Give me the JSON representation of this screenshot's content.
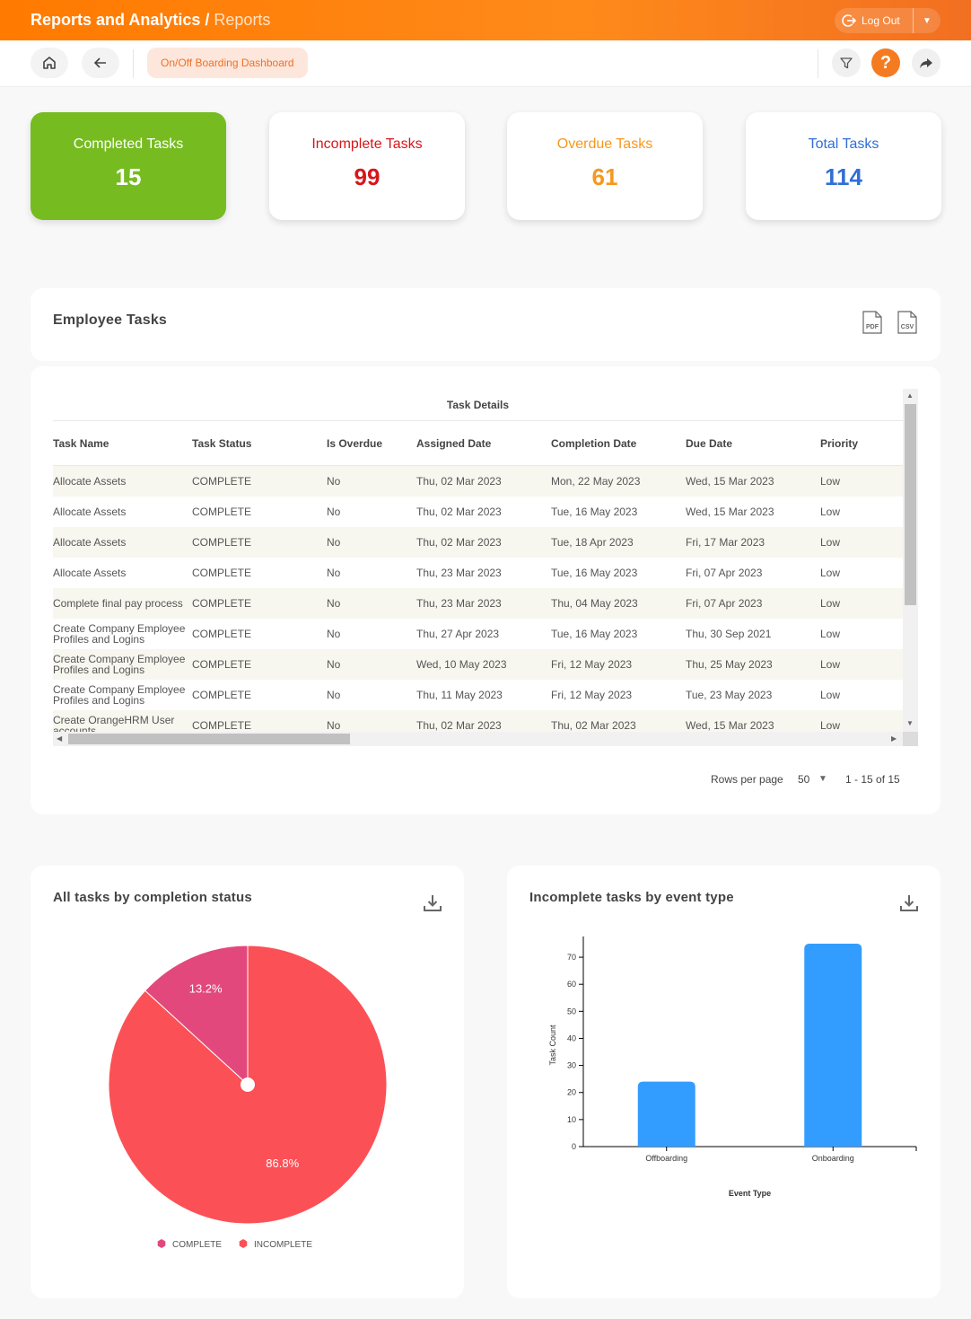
{
  "header": {
    "title": "Reports and Analytics",
    "separator": "/",
    "subtitle": "Reports",
    "logout_label": "Log Out"
  },
  "nav": {
    "dashboard_label": "On/Off Boarding Dashboard",
    "help_glyph": "?"
  },
  "stats": {
    "completed": {
      "label": "Completed Tasks",
      "value": "15",
      "color": "#76bc21"
    },
    "incomplete": {
      "label": "Incomplete Tasks",
      "value": "99",
      "color": "#d7161a"
    },
    "overdue": {
      "label": "Overdue Tasks",
      "value": "61",
      "color": "#f7971e"
    },
    "total": {
      "label": "Total Tasks",
      "value": "114",
      "color": "#2f6fd6"
    }
  },
  "employee_tasks": {
    "title": "Employee Tasks",
    "pdf_label": "PDF",
    "csv_label": "CSV",
    "group_header": "Task Details",
    "columns": [
      "Task Name",
      "Task Status",
      "Is Overdue",
      "Assigned Date",
      "Completion Date",
      "Due Date",
      "Priority"
    ],
    "rows": [
      [
        "Allocate Assets",
        "COMPLETE",
        "No",
        "Thu, 02 Mar 2023",
        "Mon, 22 May 2023",
        "Wed, 15 Mar 2023",
        "Low"
      ],
      [
        "Allocate Assets",
        "COMPLETE",
        "No",
        "Thu, 02 Mar 2023",
        "Tue, 16 May 2023",
        "Wed, 15 Mar 2023",
        "Low"
      ],
      [
        "Allocate Assets",
        "COMPLETE",
        "No",
        "Thu, 02 Mar 2023",
        "Tue, 18 Apr 2023",
        "Fri, 17 Mar 2023",
        "Low"
      ],
      [
        "Allocate Assets",
        "COMPLETE",
        "No",
        "Thu, 23 Mar 2023",
        "Tue, 16 May 2023",
        "Fri, 07 Apr 2023",
        "Low"
      ],
      [
        "Complete final pay process",
        "COMPLETE",
        "No",
        "Thu, 23 Mar 2023",
        "Thu, 04 May 2023",
        "Fri, 07 Apr 2023",
        "Low"
      ],
      [
        "Create Company Employee Profiles and Logins",
        "COMPLETE",
        "No",
        "Thu, 27 Apr 2023",
        "Tue, 16 May 2023",
        "Thu, 30 Sep 2021",
        "Low"
      ],
      [
        "Create Company Employee Profiles and Logins",
        "COMPLETE",
        "No",
        "Wed, 10 May 2023",
        "Fri, 12 May 2023",
        "Thu, 25 May 2023",
        "Low"
      ],
      [
        "Create Company Employee Profiles and Logins",
        "COMPLETE",
        "No",
        "Thu, 11 May 2023",
        "Fri, 12 May 2023",
        "Tue, 23 May 2023",
        "Low"
      ],
      [
        "Create OrangeHRM User accounts",
        "COMPLETE",
        "No",
        "Thu, 02 Mar 2023",
        "Thu, 02 Mar 2023",
        "Wed, 15 Mar 2023",
        "Low"
      ]
    ],
    "pagination": {
      "rows_per_page_label": "Rows per page",
      "rows_per_page": "50",
      "range": "1 - 15 of 15"
    }
  },
  "chart_data": [
    {
      "type": "pie",
      "title": "All tasks by completion status",
      "slices": [
        {
          "label": "COMPLETE",
          "value": 13.2,
          "display": "13.2%",
          "color": "#e3487d"
        },
        {
          "label": "INCOMPLETE",
          "value": 86.8,
          "display": "86.8%",
          "color": "#fb5156"
        }
      ]
    },
    {
      "type": "bar",
      "title": "Incomplete tasks by event type",
      "categories": [
        "Offboarding",
        "Onboarding"
      ],
      "values": [
        24,
        75
      ],
      "xlabel": "Event Type",
      "ylabel": "Task Count",
      "ylim": [
        0,
        75
      ],
      "yticks": [
        "0",
        "10",
        "20",
        "30",
        "40",
        "50",
        "60",
        "70"
      ],
      "color": "#339dff"
    }
  ]
}
